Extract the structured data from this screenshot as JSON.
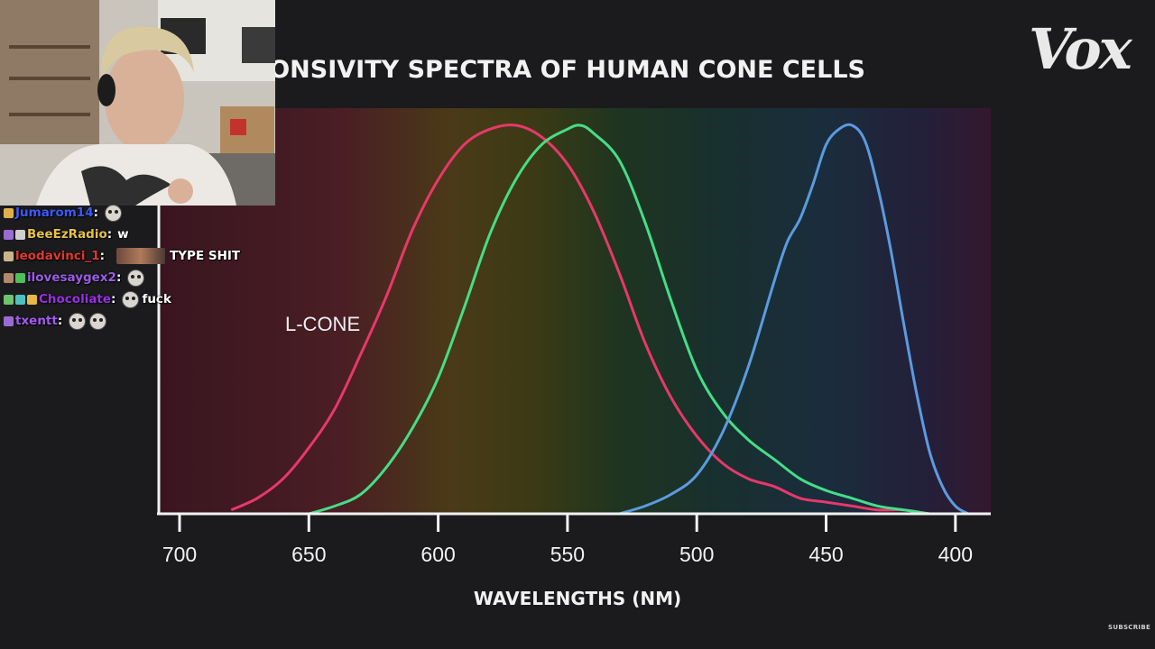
{
  "brand": {
    "logo_text": "Vox"
  },
  "chart_data": {
    "type": "line",
    "title": "RESPONSIVITY SPECTRA OF HUMAN CONE CELLS",
    "visible_title": "SPONSIVITY SPECTRA OF HUMAN CONE CELLS",
    "xlabel": "WAVELENGTHS (NM)",
    "ylabel": "",
    "xlim": [
      708,
      388
    ],
    "ylim": [
      0,
      1
    ],
    "x_reversed": true,
    "xticks": [
      700,
      650,
      600,
      550,
      500,
      450,
      400
    ],
    "grid": false,
    "series": [
      {
        "name": "L-CONE",
        "color": "#e8386a",
        "x": [
          680,
          670,
          660,
          650,
          640,
          630,
          620,
          610,
          600,
          590,
          580,
          570,
          560,
          550,
          540,
          530,
          520,
          510,
          500,
          490,
          480,
          470,
          460,
          450,
          440,
          430,
          420,
          410
        ],
        "y": [
          0.01,
          0.04,
          0.09,
          0.17,
          0.27,
          0.41,
          0.56,
          0.73,
          0.86,
          0.95,
          0.99,
          1.0,
          0.97,
          0.9,
          0.78,
          0.62,
          0.44,
          0.3,
          0.2,
          0.13,
          0.09,
          0.07,
          0.04,
          0.03,
          0.02,
          0.01,
          0.01,
          0.0
        ]
      },
      {
        "name": "",
        "color": "#46dd86",
        "x": [
          650,
          640,
          630,
          620,
          610,
          600,
          590,
          580,
          570,
          560,
          550,
          545,
          540,
          530,
          520,
          510,
          500,
          490,
          480,
          470,
          460,
          450,
          440,
          430,
          420,
          410
        ],
        "y": [
          0.0,
          0.02,
          0.05,
          0.12,
          0.22,
          0.35,
          0.53,
          0.72,
          0.86,
          0.95,
          0.99,
          1.0,
          0.98,
          0.91,
          0.75,
          0.55,
          0.37,
          0.26,
          0.19,
          0.14,
          0.09,
          0.06,
          0.04,
          0.02,
          0.01,
          0.0
        ]
      },
      {
        "name": "",
        "color": "#5b9be0",
        "x": [
          530,
          520,
          510,
          500,
          490,
          480,
          470,
          465,
          460,
          455,
          450,
          445,
          440,
          435,
          430,
          425,
          420,
          415,
          410,
          405,
          400,
          395
        ],
        "y": [
          0.0,
          0.02,
          0.05,
          0.1,
          0.21,
          0.38,
          0.6,
          0.7,
          0.76,
          0.85,
          0.95,
          0.99,
          1.0,
          0.96,
          0.84,
          0.68,
          0.49,
          0.31,
          0.16,
          0.07,
          0.02,
          0.0
        ]
      }
    ]
  },
  "webcam": {
    "label": "streamer-webcam"
  },
  "chat": {
    "messages": [
      {
        "user": "Jumarom14",
        "user_color": "#3b5bff",
        "text": "",
        "emotes": 1,
        "badges": [
          "#e0b14a"
        ]
      },
      {
        "user": "BeeEzRadio",
        "user_color": "#e7c14a",
        "text": "w",
        "emotes": 0,
        "badges": [
          "#9a6bd6",
          "#cfcfcf"
        ]
      },
      {
        "user": "leodavinci_1",
        "user_color": "#e03a2e",
        "text": "TYPE SHIT",
        "emotes": 0,
        "badges": [
          "#c8b68a"
        ],
        "wide_emote": true
      },
      {
        "user": "ilovesaygex2",
        "user_color": "#9b5de5",
        "text": "",
        "emotes": 1,
        "badges": [
          "#b08a6a",
          "#4fbf5a"
        ]
      },
      {
        "user": "Chocoliate",
        "user_color": "#9b2fe8",
        "text": "fuck",
        "emotes": 1,
        "badges": [
          "#6cc46c",
          "#4fc0c0",
          "#e6b84a"
        ]
      },
      {
        "user": "txentt",
        "user_color": "#a45cf0",
        "text": "",
        "emotes": 2,
        "badges": [
          "#9a6bd6"
        ]
      }
    ]
  },
  "footer": {
    "subscribe_text": "SUBSCRIBE"
  }
}
